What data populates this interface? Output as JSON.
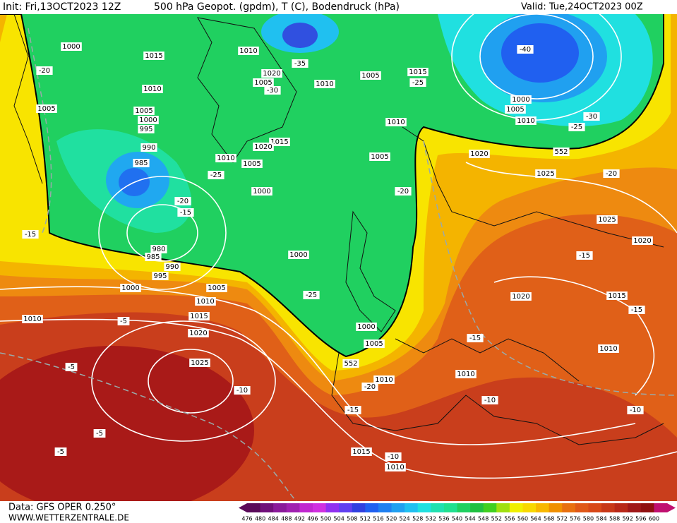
{
  "header": {
    "init": "Init: Fri,13OCT2023 12Z",
    "title": "500 hPa Geopot. (gpdm), T (C), Bodendruck (hPa)",
    "valid": "Valid: Tue,24OCT2023 00Z"
  },
  "footer": {
    "data": "Data: GFS OPER 0.250°",
    "site": "WWW.WETTERZENTRALE.DE"
  },
  "colorbar": {
    "labels": [
      476,
      480,
      484,
      488,
      492,
      496,
      500,
      504,
      508,
      512,
      516,
      520,
      524,
      528,
      532,
      536,
      540,
      544,
      548,
      552,
      556,
      560,
      564,
      568,
      572,
      576,
      580,
      584,
      588,
      592,
      596,
      600
    ],
    "colors": [
      "#5a0a5a",
      "#70107a",
      "#8a1a9a",
      "#a020b0",
      "#c028d0",
      "#d030e0",
      "#9030f0",
      "#6040f0",
      "#3040e0",
      "#2060f0",
      "#2080f0",
      "#20a0f0",
      "#20c0f0",
      "#20e0e0",
      "#20e0b0",
      "#20e090",
      "#20d060",
      "#20c040",
      "#40d020",
      "#a0e010",
      "#f0f000",
      "#f8d800",
      "#f8b800",
      "#f09000",
      "#e87010",
      "#e05818",
      "#d84818",
      "#c83818",
      "#b82818",
      "#a01818",
      "#901010",
      "#c01070"
    ]
  },
  "map": {
    "labels": [
      "1000",
      "1015",
      "1010",
      "1020",
      "1005",
      "1010",
      "1005",
      "1015",
      "-25",
      "1010",
      "1005",
      "1005",
      "1000",
      "995",
      "990",
      "985",
      "1010",
      "1005",
      "1015",
      "1020",
      "1000",
      "1005",
      "1010",
      "1020",
      "1025",
      "1000",
      "1005",
      "1010",
      "-40",
      "-30",
      "-25",
      "-20",
      "1025",
      "1020",
      "-15",
      "1000",
      "980",
      "985",
      "990",
      "995",
      "1000",
      "1005",
      "1010",
      "1015",
      "1010",
      "1020",
      "1000",
      "1005",
      "1025",
      "-5",
      "-10",
      "1010",
      "-20",
      "1010",
      "-15",
      "-10",
      "-10",
      "1015",
      "-10",
      "1010",
      "1020",
      "1015",
      "-15",
      "1010",
      "-20",
      "-15",
      "-25",
      "-20",
      "-20",
      "-15",
      "552",
      "552",
      "-5",
      "-5",
      "-15",
      "-5",
      "-25",
      "-30",
      "-35"
    ]
  }
}
